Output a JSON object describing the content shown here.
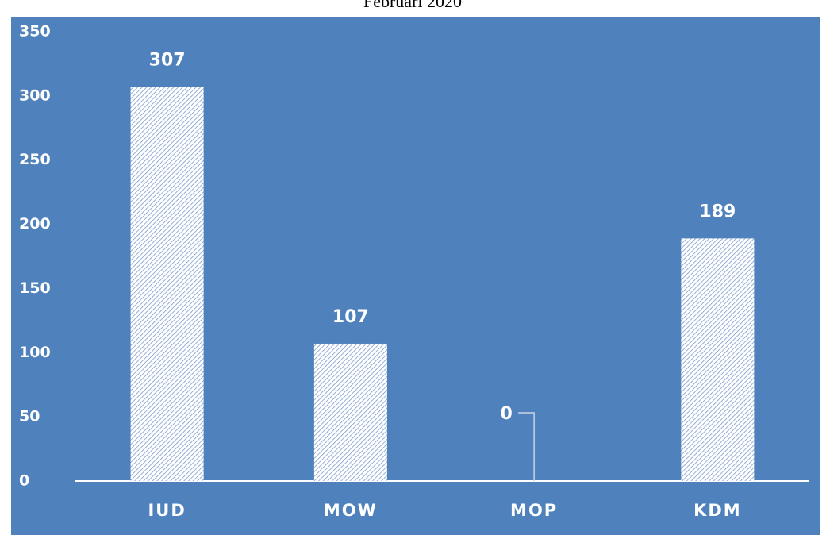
{
  "chart_data": {
    "type": "bar",
    "title": "Februari 2020",
    "categories": [
      "IUD",
      "MOW",
      "MOP",
      "KDM"
    ],
    "values": [
      307,
      107,
      0,
      189
    ],
    "color": "#ffffff",
    "background": "#4f81bd",
    "ylim": [
      0,
      350
    ],
    "yticks": [
      0,
      50,
      100,
      150,
      200,
      250,
      300,
      350
    ],
    "grid": false
  }
}
